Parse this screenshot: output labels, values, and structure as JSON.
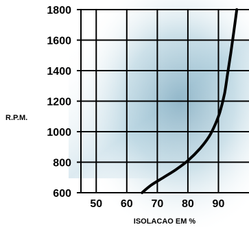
{
  "chart_data": {
    "type": "line",
    "xlabel": "ISOLACAO EM %",
    "ylabel": "R.P.M.",
    "xlim": [
      45,
      100
    ],
    "ylim": [
      600,
      1800
    ],
    "x_ticks": [
      50,
      60,
      70,
      80,
      90
    ],
    "x_tick_labels": [
      "50",
      "60",
      "70",
      "80",
      "90"
    ],
    "y_ticks": [
      600,
      800,
      1000,
      1200,
      1400,
      1600,
      1800
    ],
    "y_tick_labels": [
      "600",
      "800",
      "1000",
      "1200",
      "1400",
      "1600",
      "1800"
    ],
    "grid": true,
    "series": [
      {
        "x": [
          65,
          68,
          72,
          76,
          80,
          84,
          87,
          89,
          90.5,
          92,
          93,
          94,
          95,
          96
        ],
        "y": [
          600,
          650,
          700,
          750,
          810,
          890,
          970,
          1050,
          1130,
          1250,
          1380,
          1510,
          1650,
          1800
        ]
      }
    ],
    "colors": {
      "line": "#000000",
      "grid": "#000000",
      "background_light": "#ffffff",
      "background_tint": "#6fa8c0"
    }
  }
}
